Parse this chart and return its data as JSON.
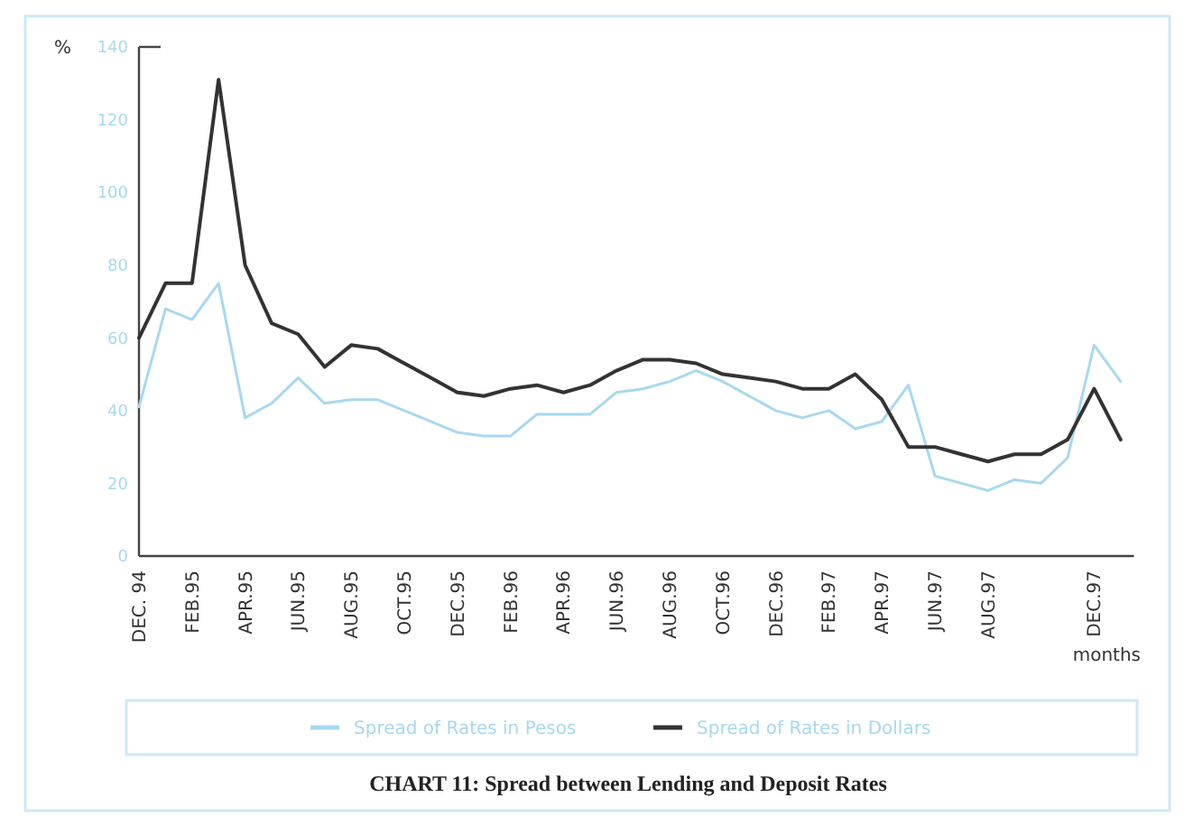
{
  "chart_data": {
    "type": "line",
    "title": "CHART 11: Spread between Lending and Deposit Rates",
    "xlabel": "months",
    "ylabel": "%",
    "categories": [
      "DEC. 94",
      null,
      "FEB.95",
      null,
      "APR.95",
      null,
      "JUN.95",
      null,
      "AUG.95",
      null,
      "OCT.95",
      null,
      "DEC.95",
      null,
      "FEB.96",
      null,
      "APR.96",
      null,
      "JUN.96",
      null,
      "AUG.96",
      null,
      "OCT.96",
      null,
      "DEC.96",
      null,
      "FEB.97",
      null,
      "APR.97",
      null,
      "JUN.97",
      null,
      "AUG.97",
      null,
      null,
      null,
      "DEC.97",
      null
    ],
    "series": [
      {
        "name": "Spread of Rates in Pesos",
        "color": "#a8d8f0",
        "values": [
          41,
          68,
          65,
          75,
          38,
          42,
          49,
          42,
          43,
          43,
          40,
          37,
          34,
          33,
          33,
          39,
          39,
          39,
          45,
          46,
          48,
          51,
          48,
          44,
          40,
          38,
          40,
          35,
          37,
          47,
          22,
          20,
          18,
          21,
          20,
          27,
          58,
          48
        ]
      },
      {
        "name": "Spread of Rates in Dollars",
        "color": "#333333",
        "values": [
          60,
          75,
          75,
          131,
          80,
          64,
          61,
          52,
          58,
          57,
          53,
          49,
          45,
          44,
          46,
          47,
          45,
          47,
          51,
          54,
          54,
          53,
          50,
          49,
          48,
          46,
          46,
          50,
          43,
          30,
          30,
          28,
          26,
          28,
          28,
          32,
          46,
          32
        ]
      }
    ],
    "ylim": [
      0,
      140
    ],
    "yticks": [
      0,
      20,
      40,
      60,
      80,
      100,
      120,
      140
    ],
    "grid": false,
    "legend": "bottom",
    "marker": "none",
    "line_style": "solid"
  }
}
